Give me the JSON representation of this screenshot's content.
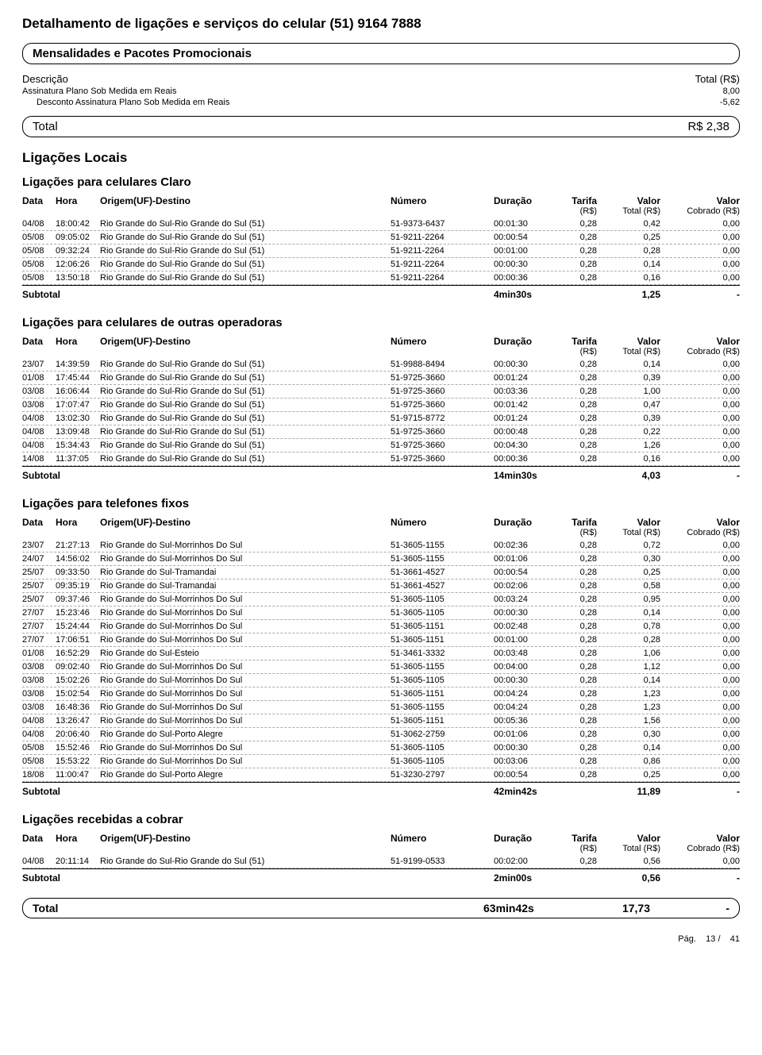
{
  "title": "Detalhamento de ligações e serviços do celular (51) 9164 7888",
  "mensal": {
    "banner": "Mensalidades e Pacotes Promocionais",
    "header_desc": "Descrição",
    "header_total": "Total (R$)",
    "lines": [
      {
        "desc": "Assinatura Plano Sob Medida em Reais",
        "indent": false,
        "val": "8,00"
      },
      {
        "desc": "Desconto Assinatura Plano Sob Medida em Reais",
        "indent": true,
        "val": "-5,62"
      }
    ],
    "total_label": "Total",
    "total_value": "R$ 2,38"
  },
  "calls_section_title": "Ligações Locais",
  "col": {
    "data": "Data",
    "hora": "Hora",
    "orig": "Origem(UF)-Destino",
    "num": "Número",
    "dur": "Duração",
    "tarifa": "Tarifa",
    "tarifa_sub": "(R$)",
    "valor": "Valor",
    "valor_sub": "Total (R$)",
    "cobr": "Valor",
    "cobr_sub": "Cobrado (R$)"
  },
  "subtotal_label": "Subtotal",
  "groups": [
    {
      "title": "Ligações para celulares Claro",
      "rows": [
        [
          "04/08",
          "18:00:42",
          "Rio Grande do Sul-Rio Grande do Sul (51)",
          "51-9373-6437",
          "00:01:30",
          "0,28",
          "0,42",
          "0,00"
        ],
        [
          "05/08",
          "09:05:02",
          "Rio Grande do Sul-Rio Grande do Sul (51)",
          "51-9211-2264",
          "00:00:54",
          "0,28",
          "0,25",
          "0,00"
        ],
        [
          "05/08",
          "09:32:24",
          "Rio Grande do Sul-Rio Grande do Sul (51)",
          "51-9211-2264",
          "00:01:00",
          "0,28",
          "0,28",
          "0,00"
        ],
        [
          "05/08",
          "12:06:26",
          "Rio Grande do Sul-Rio Grande do Sul (51)",
          "51-9211-2264",
          "00:00:30",
          "0,28",
          "0,14",
          "0,00"
        ],
        [
          "05/08",
          "13:50:18",
          "Rio Grande do Sul-Rio Grande do Sul (51)",
          "51-9211-2264",
          "00:00:36",
          "0,28",
          "0,16",
          "0,00"
        ]
      ],
      "subtotal_dur": "4min30s",
      "subtotal_val": "1,25",
      "subtotal_cobr": "-"
    },
    {
      "title": "Ligações para celulares de outras operadoras",
      "rows": [
        [
          "23/07",
          "14:39:59",
          "Rio Grande do Sul-Rio Grande do Sul (51)",
          "51-9988-8494",
          "00:00:30",
          "0,28",
          "0,14",
          "0,00"
        ],
        [
          "01/08",
          "17:45:44",
          "Rio Grande do Sul-Rio Grande do Sul (51)",
          "51-9725-3660",
          "00:01:24",
          "0,28",
          "0,39",
          "0,00"
        ],
        [
          "03/08",
          "16:06:44",
          "Rio Grande do Sul-Rio Grande do Sul (51)",
          "51-9725-3660",
          "00:03:36",
          "0,28",
          "1,00",
          "0,00"
        ],
        [
          "03/08",
          "17:07:47",
          "Rio Grande do Sul-Rio Grande do Sul (51)",
          "51-9725-3660",
          "00:01:42",
          "0,28",
          "0,47",
          "0,00"
        ],
        [
          "04/08",
          "13:02:30",
          "Rio Grande do Sul-Rio Grande do Sul (51)",
          "51-9715-8772",
          "00:01:24",
          "0,28",
          "0,39",
          "0,00"
        ],
        [
          "04/08",
          "13:09:48",
          "Rio Grande do Sul-Rio Grande do Sul (51)",
          "51-9725-3660",
          "00:00:48",
          "0,28",
          "0,22",
          "0,00"
        ],
        [
          "04/08",
          "15:34:43",
          "Rio Grande do Sul-Rio Grande do Sul (51)",
          "51-9725-3660",
          "00:04:30",
          "0,28",
          "1,26",
          "0,00"
        ],
        [
          "14/08",
          "11:37:05",
          "Rio Grande do Sul-Rio Grande do Sul (51)",
          "51-9725-3660",
          "00:00:36",
          "0,28",
          "0,16",
          "0,00"
        ]
      ],
      "subtotal_dur": "14min30s",
      "subtotal_val": "4,03",
      "subtotal_cobr": "-"
    },
    {
      "title": "Ligações para telefones fixos",
      "rows": [
        [
          "23/07",
          "21:27:13",
          "Rio Grande do Sul-Morrinhos Do Sul",
          "51-3605-1155",
          "00:02:36",
          "0,28",
          "0,72",
          "0,00"
        ],
        [
          "24/07",
          "14:56:02",
          "Rio Grande do Sul-Morrinhos Do Sul",
          "51-3605-1155",
          "00:01:06",
          "0,28",
          "0,30",
          "0,00"
        ],
        [
          "25/07",
          "09:33:50",
          "Rio Grande do Sul-Tramandai",
          "51-3661-4527",
          "00:00:54",
          "0,28",
          "0,25",
          "0,00"
        ],
        [
          "25/07",
          "09:35:19",
          "Rio Grande do Sul-Tramandai",
          "51-3661-4527",
          "00:02:06",
          "0,28",
          "0,58",
          "0,00"
        ],
        [
          "25/07",
          "09:37:46",
          "Rio Grande do Sul-Morrinhos Do Sul",
          "51-3605-1105",
          "00:03:24",
          "0,28",
          "0,95",
          "0,00"
        ],
        [
          "27/07",
          "15:23:46",
          "Rio Grande do Sul-Morrinhos Do Sul",
          "51-3605-1105",
          "00:00:30",
          "0,28",
          "0,14",
          "0,00"
        ],
        [
          "27/07",
          "15:24:44",
          "Rio Grande do Sul-Morrinhos Do Sul",
          "51-3605-1151",
          "00:02:48",
          "0,28",
          "0,78",
          "0,00"
        ],
        [
          "27/07",
          "17:06:51",
          "Rio Grande do Sul-Morrinhos Do Sul",
          "51-3605-1151",
          "00:01:00",
          "0,28",
          "0,28",
          "0,00"
        ],
        [
          "01/08",
          "16:52:29",
          "Rio Grande do Sul-Esteio",
          "51-3461-3332",
          "00:03:48",
          "0,28",
          "1,06",
          "0,00"
        ],
        [
          "03/08",
          "09:02:40",
          "Rio Grande do Sul-Morrinhos Do Sul",
          "51-3605-1155",
          "00:04:00",
          "0,28",
          "1,12",
          "0,00"
        ],
        [
          "03/08",
          "15:02:26",
          "Rio Grande do Sul-Morrinhos Do Sul",
          "51-3605-1105",
          "00:00:30",
          "0,28",
          "0,14",
          "0,00"
        ],
        [
          "03/08",
          "15:02:54",
          "Rio Grande do Sul-Morrinhos Do Sul",
          "51-3605-1151",
          "00:04:24",
          "0,28",
          "1,23",
          "0,00"
        ],
        [
          "03/08",
          "16:48:36",
          "Rio Grande do Sul-Morrinhos Do Sul",
          "51-3605-1155",
          "00:04:24",
          "0,28",
          "1,23",
          "0,00"
        ],
        [
          "04/08",
          "13:26:47",
          "Rio Grande do Sul-Morrinhos Do Sul",
          "51-3605-1151",
          "00:05:36",
          "0,28",
          "1,56",
          "0,00"
        ],
        [
          "04/08",
          "20:06:40",
          "Rio Grande do Sul-Porto Alegre",
          "51-3062-2759",
          "00:01:06",
          "0,28",
          "0,30",
          "0,00"
        ],
        [
          "05/08",
          "15:52:46",
          "Rio Grande do Sul-Morrinhos Do Sul",
          "51-3605-1105",
          "00:00:30",
          "0,28",
          "0,14",
          "0,00"
        ],
        [
          "05/08",
          "15:53:22",
          "Rio Grande do Sul-Morrinhos Do Sul",
          "51-3605-1105",
          "00:03:06",
          "0,28",
          "0,86",
          "0,00"
        ],
        [
          "18/08",
          "11:00:47",
          "Rio Grande do Sul-Porto Alegre",
          "51-3230-2797",
          "00:00:54",
          "0,28",
          "0,25",
          "0,00"
        ]
      ],
      "subtotal_dur": "42min42s",
      "subtotal_val": "11,89",
      "subtotal_cobr": "-"
    },
    {
      "title": "Ligações recebidas a cobrar",
      "rows": [
        [
          "04/08",
          "20:11:14",
          "Rio Grande do Sul-Rio Grande do Sul (51)",
          "51-9199-0533",
          "00:02:00",
          "0,28",
          "0,56",
          "0,00"
        ]
      ],
      "subtotal_dur": "2min00s",
      "subtotal_val": "0,56",
      "subtotal_cobr": "-"
    }
  ],
  "grand_total": {
    "label": "Total",
    "dur": "63min42s",
    "val": "17,73",
    "cobr": "-"
  },
  "footer": {
    "label": "Pág.",
    "cur": "13 /",
    "total": "41"
  }
}
